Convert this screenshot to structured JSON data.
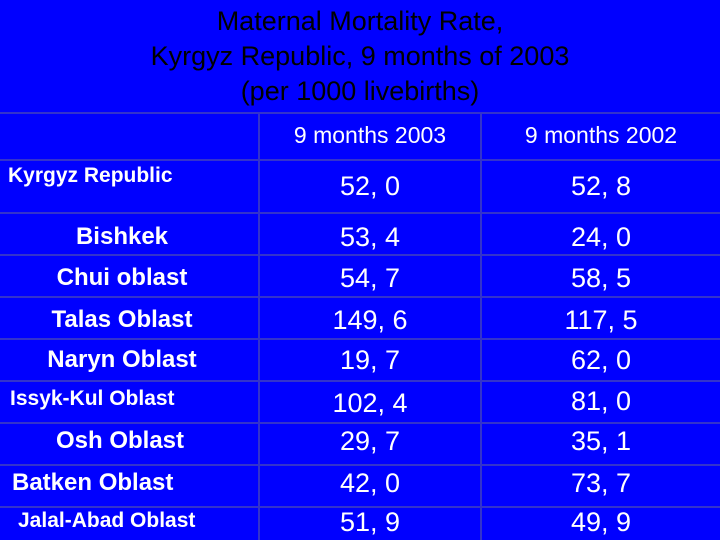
{
  "title": {
    "line1": "Maternal Mortality Rate,",
    "line2": "Kyrgyz Republic, 9 months of 2003",
    "line3": "(per  1000 livebirths)"
  },
  "table": {
    "headers": [
      "9 months 2003",
      "9 months 2002"
    ],
    "rows": [
      {
        "region": "Kyrgyz Republic",
        "v2003": "52, 0",
        "v2002": "52, 8"
      },
      {
        "region": "Bishkek",
        "v2003": "53, 4",
        "v2002": "24, 0"
      },
      {
        "region": "Chui oblast",
        "v2003": "54, 7",
        "v2002": "58, 5"
      },
      {
        "region": "Talas Oblast",
        "v2003": "149, 6",
        "v2002": "117, 5"
      },
      {
        "region": "Naryn Oblast",
        "v2003": "19, 7",
        "v2002": "62, 0"
      },
      {
        "region": "Issyk-Kul Oblast",
        "v2003": "102, 4",
        "v2002": "81, 0"
      },
      {
        "region": "Osh Oblast",
        "v2003": "29, 7",
        "v2002": "35, 1"
      },
      {
        "region": "Batken Oblast",
        "v2003": "42, 0",
        "v2002": "73, 7"
      },
      {
        "region": "Jalal-Abad Oblast",
        "v2003": "51, 9",
        "v2002": "49, 9"
      }
    ]
  }
}
